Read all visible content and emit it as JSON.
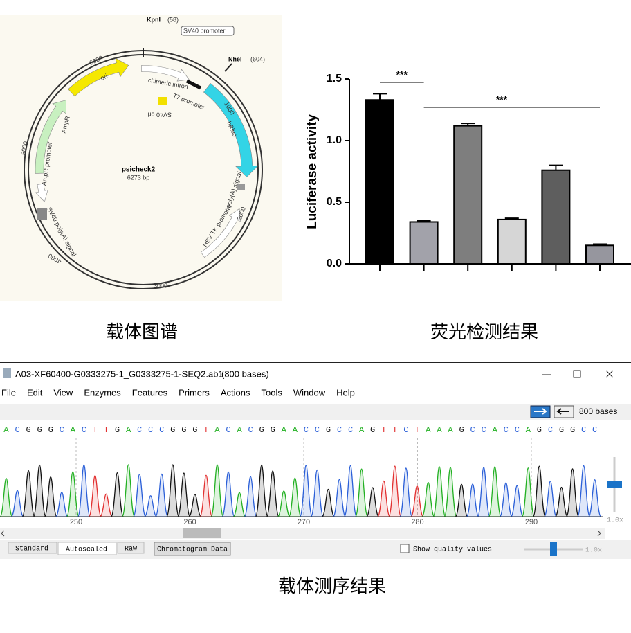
{
  "chart_data": {
    "type": "bar",
    "y_label": "Luciferase activity",
    "caption": "荧光检测结果",
    "categories": [
      null,
      null,
      null,
      null,
      null,
      null
    ],
    "values": [
      1.33,
      0.34,
      1.12,
      0.36,
      0.76,
      0.15
    ],
    "errors": [
      0.05,
      0.01,
      0.02,
      0.01,
      0.04,
      0.01
    ],
    "colors": [
      "#000000",
      "#a2a2aa",
      "#7e7e7e",
      "#d6d6d6",
      "#5e5e5e",
      "#96969e"
    ],
    "ylim": [
      0,
      1.5
    ],
    "yticks": [
      {
        "value": 0,
        "label": "0.0"
      },
      {
        "value": 0.5,
        "label": "0.5"
      },
      {
        "value": 1,
        "label": "1.0"
      },
      {
        "value": 1.5,
        "label": "1.5"
      }
    ],
    "annotations": [
      "***",
      "***"
    ]
  },
  "plasmid": {
    "caption": "载体图谱",
    "name": "psicheck2",
    "size": "6273 bp",
    "sites": [
      {
        "name": "KpnI",
        "pos": "(58)"
      },
      {
        "name": "NheI",
        "pos": "(604)"
      }
    ],
    "features": [
      "SV40 promoter",
      "ori",
      "chimeric intron",
      "T7 promoter",
      "SV40 ori",
      "hRluc",
      "AmpR",
      "AmpR promoter",
      "poly(A) signal",
      "HSV TK promoter",
      "SV40 poly(A) signal"
    ],
    "ticks": [
      "6000",
      "1000",
      "5000",
      "2000",
      "4000",
      "3000"
    ]
  },
  "chromatogram": {
    "caption": "载体测序结果",
    "title": "A03-XF60400-G0333275-1_G0333275-1-SEQ2.ab1",
    "bases": "(800 bases)",
    "menu": [
      "File",
      "Edit",
      "View",
      "Enzymes",
      "Features",
      "Primers",
      "Actions",
      "Tools",
      "Window",
      "Help"
    ],
    "base_count": "800 bases",
    "sequence": "ACGGGCACTTGACCCGGGTACACGGAACCGCCAGTTCTAAAGCCACCAGCGGCC",
    "base_colors": {
      "A": "#22b022",
      "C": "#2a5fd8",
      "G": "#111111",
      "T": "#e23030"
    },
    "ruler": [
      "250",
      "260",
      "270",
      "280",
      "290"
    ],
    "tabs": [
      "Standard",
      "Autoscaled",
      "Raw"
    ],
    "data_button": "Chromatogram Data",
    "quality": "Show quality values",
    "zoom": [
      "1.0x",
      "1.0x"
    ]
  }
}
